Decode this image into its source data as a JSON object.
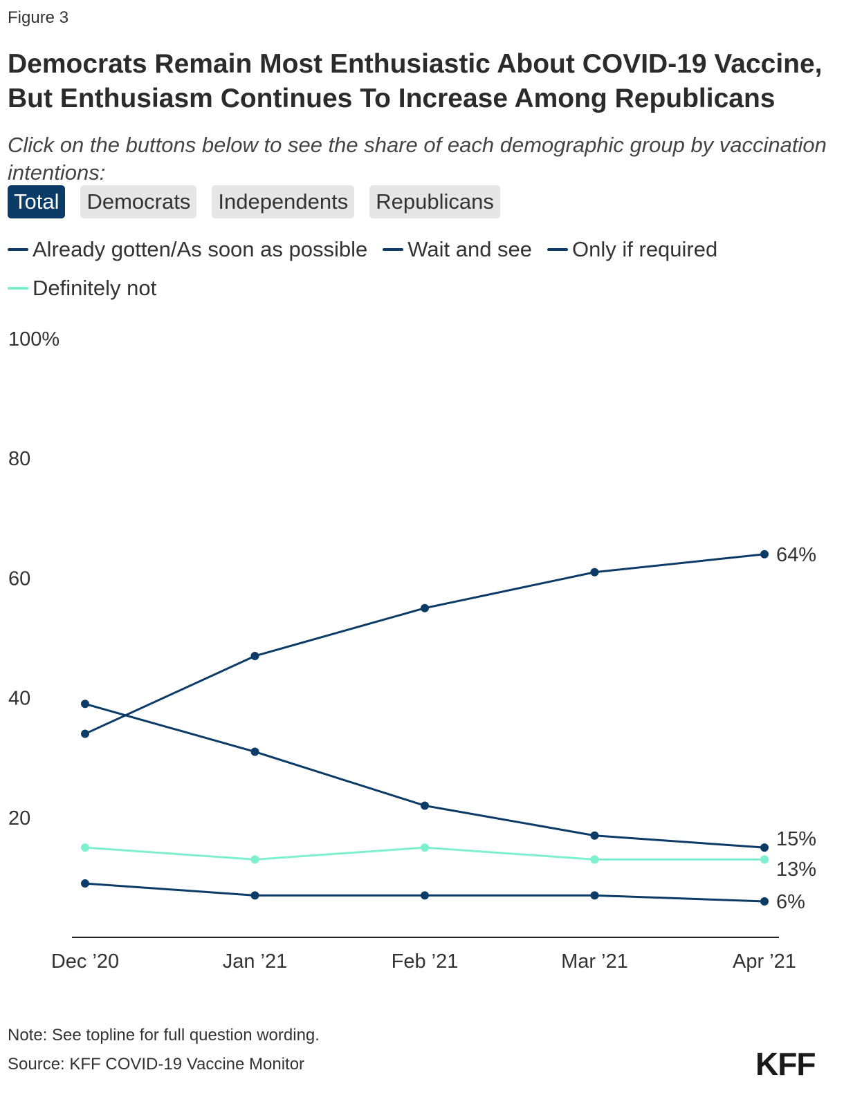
{
  "figure_label": "Figure 3",
  "title": "Democrats Remain Most Enthusiastic About COVID-19 Vaccine, But Enthusiasm Continues To Increase Among Republicans",
  "subtitle": "Click on the buttons below to see the share of each demographic group by vaccination intentions:",
  "tabs": [
    {
      "label": "Total",
      "active": true
    },
    {
      "label": "Democrats",
      "active": false
    },
    {
      "label": "Independents",
      "active": false
    },
    {
      "label": "Republicans",
      "active": false
    }
  ],
  "note": "Note: See topline for full question wording.",
  "source": "Source: KFF COVID-19 Vaccine Monitor",
  "logo": "KFF",
  "colors": {
    "dark_blue": "#0b3b66",
    "teal": "#7ef0d0",
    "axis": "#222222"
  },
  "chart_data": {
    "type": "line",
    "x": [
      "Dec ’20",
      "Jan ’21",
      "Feb ’21",
      "Mar ’21",
      "Apr ’21"
    ],
    "ylim": [
      0,
      100
    ],
    "y_ticks": [
      {
        "value": 100,
        "label": "100%"
      },
      {
        "value": 80,
        "label": "80"
      },
      {
        "value": 60,
        "label": "60"
      },
      {
        "value": 40,
        "label": "40"
      },
      {
        "value": 20,
        "label": "20"
      }
    ],
    "grid": false,
    "legend_position": "top",
    "series": [
      {
        "name": "Already gotten/As soon as possible",
        "color": "#0b3b66",
        "values": [
          34,
          47,
          55,
          61,
          64
        ],
        "end_label": "64%"
      },
      {
        "name": "Wait and see",
        "color": "#0b3b66",
        "values": [
          39,
          31,
          22,
          17,
          15
        ],
        "end_label": "15%"
      },
      {
        "name": "Only if required",
        "color": "#0b3b66",
        "values": [
          9,
          7,
          7,
          7,
          6
        ],
        "end_label": "6%"
      },
      {
        "name": "Definitely not",
        "color": "#7ef0d0",
        "values": [
          15,
          13,
          15,
          13,
          13
        ],
        "end_label": "13%"
      }
    ]
  }
}
